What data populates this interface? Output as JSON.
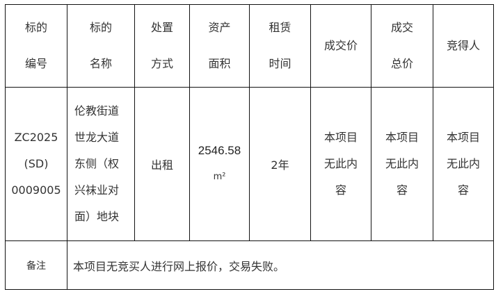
{
  "headers": [
    [
      "标的",
      "编号"
    ],
    [
      "标的",
      "名称"
    ],
    [
      "处置",
      "方式"
    ],
    [
      "资产",
      "面积"
    ],
    [
      "租赁",
      "时间"
    ],
    [
      "成交价"
    ],
    [
      "成交",
      "总价"
    ],
    [
      "竞得人"
    ]
  ],
  "row": {
    "id": [
      "ZC2025",
      "(SD)",
      "0009005"
    ],
    "name": [
      "伦教街道",
      "世龙大道",
      "东侧（权",
      "兴袜业对",
      "面）地块"
    ],
    "method": "出租",
    "area": [
      "2546.58",
      "m²"
    ],
    "term": "2年",
    "price": [
      "本项目",
      "无此内",
      "容"
    ],
    "total": [
      "本项目",
      "无此内",
      "容"
    ],
    "winner": [
      "本项目",
      "无此内",
      "容"
    ]
  },
  "note": {
    "label": "备注",
    "text": "本项目无竞买人进行网上报价，交易失败。"
  }
}
